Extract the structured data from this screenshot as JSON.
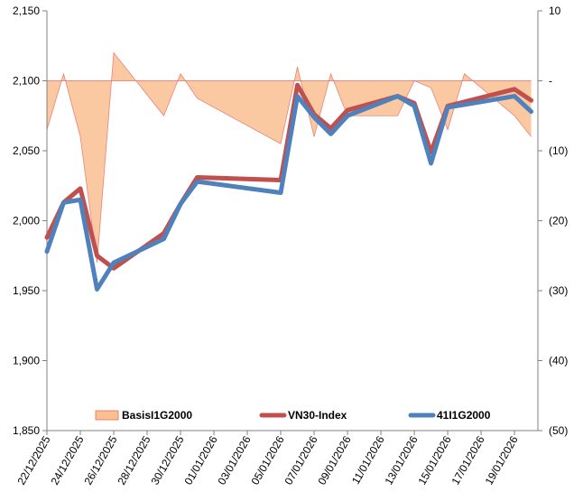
{
  "chart_data": {
    "type": "line",
    "title": "",
    "dates": [
      "22/12/2025",
      "23/12/2025",
      "24/12/2025",
      "25/12/2025",
      "26/12/2025",
      "29/12/2025",
      "30/12/2025",
      "31/12/2025",
      "05/01/2026",
      "06/01/2026",
      "07/01/2026",
      "08/01/2026",
      "09/01/2026",
      "12/01/2026",
      "13/01/2026",
      "14/01/2026",
      "15/01/2026",
      "16/01/2026",
      "19/01/2026",
      "20/01/2026"
    ],
    "x_tick_labels": [
      "22/12/2025",
      "24/12/2025",
      "26/12/2025",
      "28/12/2025",
      "30/12/2025",
      "01/01/2026",
      "03/01/2026",
      "05/01/2026",
      "07/01/2026",
      "09/01/2026",
      "11/01/2026",
      "13/01/2026",
      "15/01/2026",
      "17/01/2026",
      "19/01/2026"
    ],
    "left_axis": {
      "min": 1850,
      "max": 2150,
      "step": 50,
      "tick_labels": [
        "1,850",
        "1,900",
        "1,950",
        "2,000",
        "2,050",
        "2,100",
        "2,150"
      ]
    },
    "right_axis": {
      "min": -50,
      "max": 10,
      "step": 10,
      "tick_labels": [
        "(50)",
        "(40)",
        "(30)",
        "(20)",
        "(10)",
        "-",
        "10"
      ]
    },
    "series": [
      {
        "name": "BasisI1G2000",
        "kind": "area",
        "axis": "right",
        "color": "#FAC090",
        "edge_color": "#E46C66",
        "values": [
          -7,
          1,
          -8,
          -26,
          4,
          -5,
          1,
          -2.5,
          -9,
          2,
          -8,
          1,
          -5,
          -5,
          0,
          -1,
          -7,
          1,
          -5,
          -8
        ]
      },
      {
        "name": "VN30-Index",
        "kind": "line",
        "axis": "left",
        "color": "#C0504D",
        "values": [
          1988,
          2013,
          2023,
          1975,
          1966,
          1991,
          2012,
          2031,
          2029,
          2097,
          2076,
          2066,
          2079,
          2089,
          2084,
          2049,
          2082,
          2085,
          2094,
          2086
        ]
      },
      {
        "name": "41I1G2000",
        "kind": "line",
        "axis": "left",
        "color": "#4F81BD",
        "values": [
          1978,
          2013,
          2015,
          1951,
          1970,
          1987,
          2012,
          2028,
          2020,
          2089,
          2074,
          2062,
          2075,
          2089,
          2082,
          2041,
          2081,
          2083,
          2089,
          2078
        ]
      }
    ],
    "legend": {
      "placement": "bottom-inside",
      "entries": [
        "BasisI1G2000",
        "VN30-Index",
        "41I1G2000"
      ]
    },
    "grid": false
  }
}
